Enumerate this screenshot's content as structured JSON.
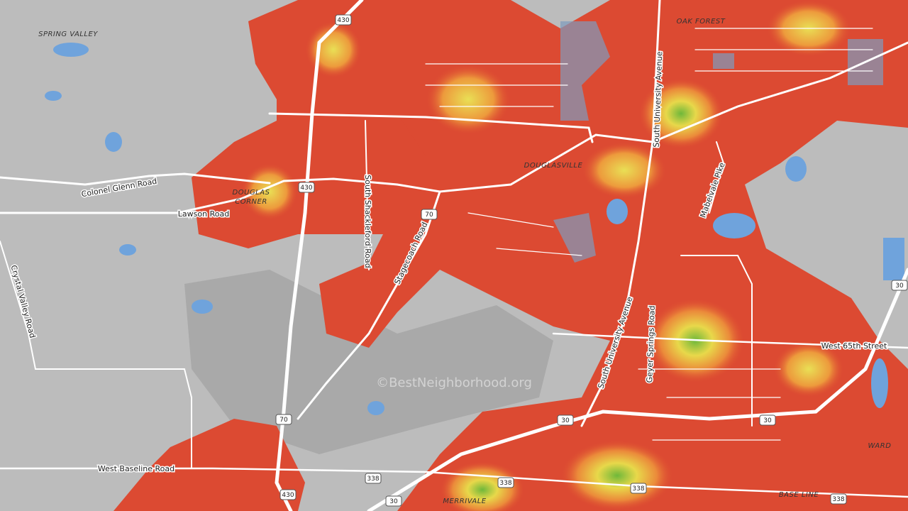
{
  "places": [
    "SPRING VALLEY",
    "OAK FOREST",
    "DOUGLAS",
    "CORNER",
    "DOUGLASVILLE",
    "MERRIVALE",
    "BASE LINE",
    "WARD"
  ],
  "roads": [
    "Colonel Glenn Road",
    "Lawson Road",
    "South Shackleford Road",
    "Stagecoach Road",
    "South University Avenue",
    "South University Avenue",
    "Mabelvale Pike",
    "Crystal Valley Road",
    "Geyer Springs Road",
    "West 65th Street",
    "West Baseline Road"
  ],
  "shields": [
    "430",
    "430",
    "430",
    "70",
    "70",
    "30",
    "30",
    "30",
    "30",
    "338",
    "338",
    "338",
    "338"
  ],
  "watermark": "©BestNeighborhood.org"
}
